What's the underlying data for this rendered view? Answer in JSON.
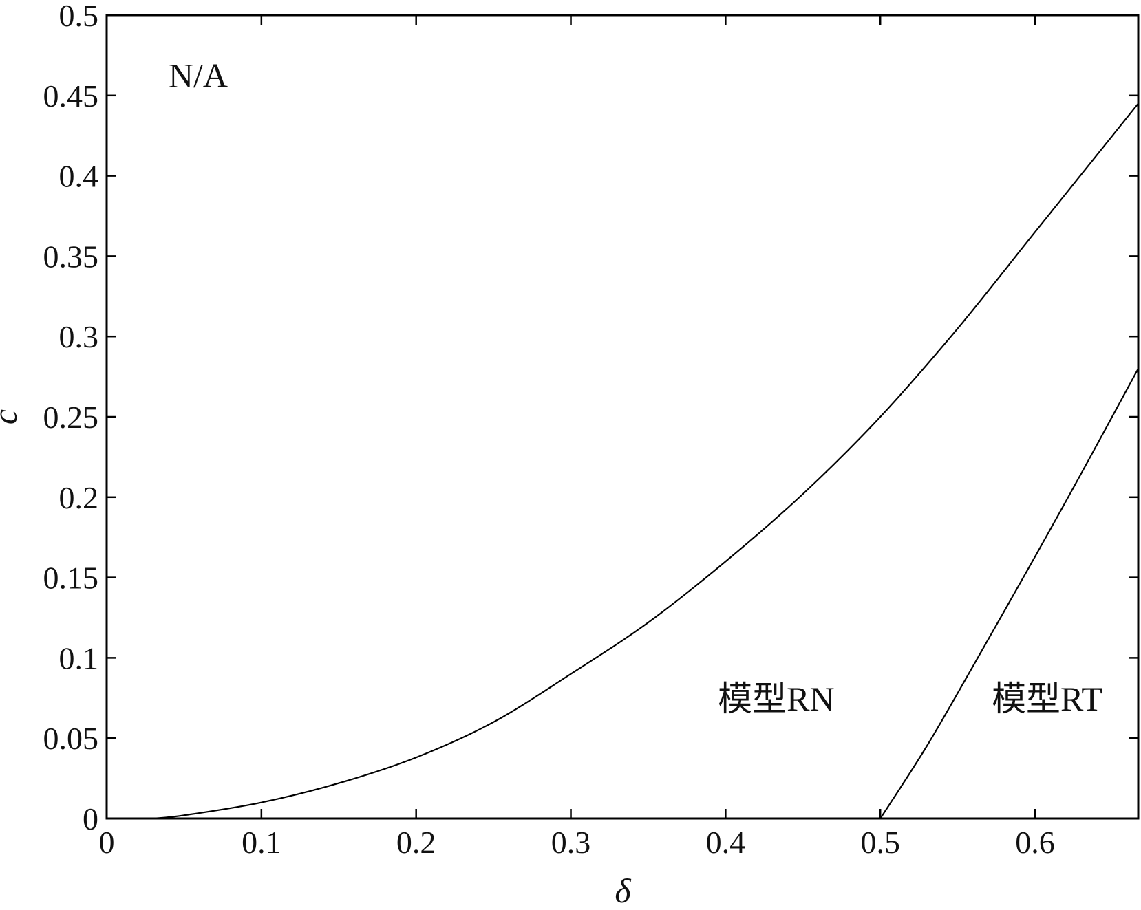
{
  "chart_data": {
    "type": "line",
    "title": "",
    "xlabel": "δ",
    "ylabel": "c",
    "xlim": [
      0,
      0.6667
    ],
    "ylim": [
      0,
      0.5
    ],
    "grid": false,
    "x_ticks": [
      "0",
      "0.1",
      "0.2",
      "0.3",
      "0.4",
      "0.5",
      "0.6"
    ],
    "x_tick_values": [
      0,
      0.1,
      0.2,
      0.3,
      0.4,
      0.5,
      0.6
    ],
    "y_ticks": [
      "0",
      "0.05",
      "0.1",
      "0.15",
      "0.2",
      "0.25",
      "0.3",
      "0.35",
      "0.4",
      "0.45",
      "0.5"
    ],
    "y_tick_values": [
      0,
      0.05,
      0.1,
      0.15,
      0.2,
      0.25,
      0.3,
      0.35,
      0.4,
      0.45,
      0.5
    ],
    "series": [
      {
        "x": [
          0.03,
          0.05,
          0.1,
          0.15,
          0.2,
          0.25,
          0.3,
          0.35,
          0.4,
          0.45,
          0.5,
          0.55,
          0.6,
          0.6667
        ],
        "y": [
          0.0,
          0.002,
          0.01,
          0.022,
          0.038,
          0.06,
          0.09,
          0.122,
          0.16,
          0.202,
          0.25,
          0.305,
          0.365,
          0.445
        ]
      },
      {
        "x": [
          0.5,
          0.53,
          0.56,
          0.6,
          0.63,
          0.6667
        ],
        "y": [
          0.0,
          0.045,
          0.095,
          0.163,
          0.215,
          0.28
        ]
      }
    ],
    "annotations": [
      {
        "text": "N/A",
        "x": 0.04,
        "y": 0.463
      },
      {
        "text": "模型RN",
        "x": 0.395,
        "y": 0.075
      },
      {
        "text": "模型RT",
        "x": 0.572,
        "y": 0.075
      }
    ]
  }
}
